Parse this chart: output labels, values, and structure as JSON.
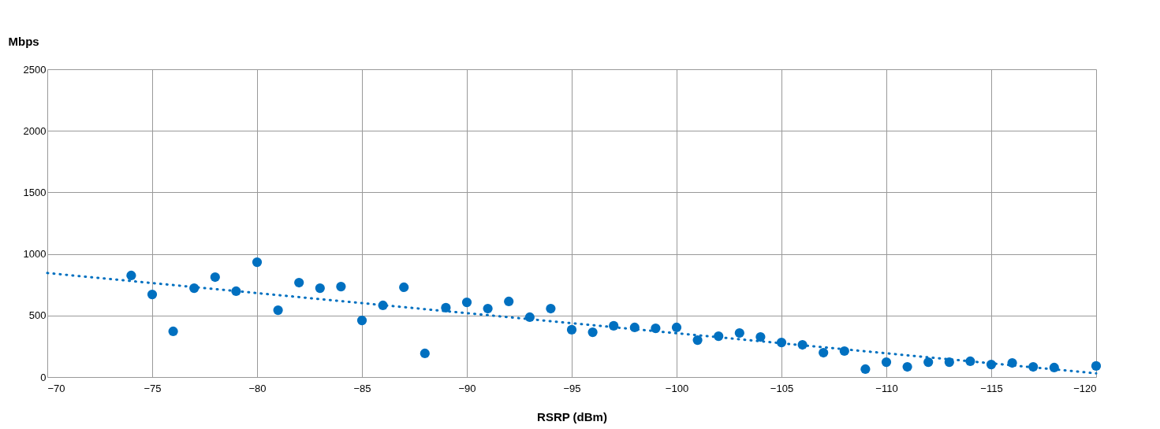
{
  "chart_data": {
    "type": "scatter",
    "ylabel": "Mbps",
    "xlabel": "RSRP (dBm)",
    "xlim": [
      -70,
      -120
    ],
    "xticks": [
      -70,
      -75,
      -80,
      -85,
      -90,
      -95,
      -100,
      -105,
      -110,
      -115,
      -120
    ],
    "ylim": [
      0,
      2500
    ],
    "yticks": [
      0,
      500,
      1000,
      1500,
      2000,
      2500
    ],
    "grid": true,
    "series": [
      {
        "color": "#0070c0",
        "marker": "circle",
        "x": [
          -74,
          -75,
          -76,
          -77,
          -78,
          -79,
          -80,
          -81,
          -82,
          -83,
          -84,
          -85,
          -86,
          -87,
          -88,
          -89,
          -90,
          -91,
          -92,
          -93,
          -94,
          -95,
          -96,
          -97,
          -98,
          -99,
          -100,
          -101,
          -102,
          -103,
          -104,
          -105,
          -106,
          -107,
          -108,
          -109,
          -110,
          -111,
          -112,
          -113,
          -114,
          -115,
          -116,
          -117,
          -118,
          -120
        ],
        "values": [
          825,
          671,
          371,
          722,
          812,
          697,
          933,
          543,
          767,
          722,
          735,
          460,
          582,
          729,
          192,
          563,
          607,
          556,
          614,
          486,
          556,
          384,
          364,
          416,
          403,
          396,
          403,
          300,
          332,
          358,
          326,
          281,
          262,
          198,
          211,
          64,
          121,
          83,
          121,
          121,
          128,
          102,
          115,
          83,
          77,
          90
        ]
      },
      {
        "type": "line",
        "color": "#0070c0",
        "line_style": "dotted",
        "marker": "none",
        "x": [
          -70,
          -120
        ],
        "values": [
          845,
          30
        ]
      }
    ]
  }
}
